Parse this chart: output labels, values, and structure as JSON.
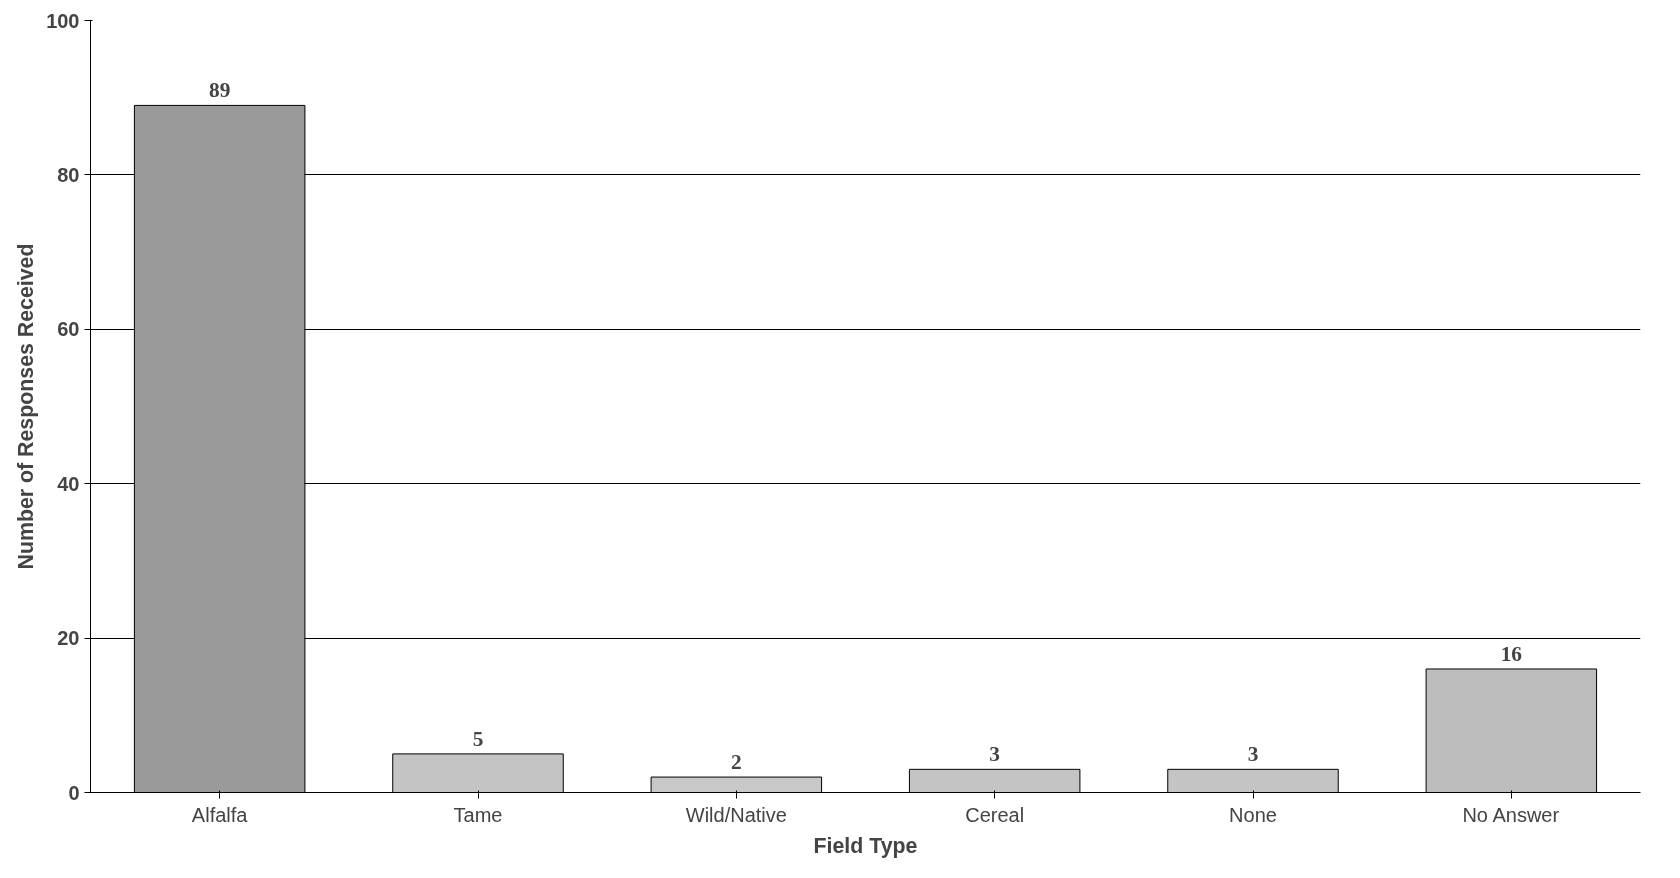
{
  "chart_data": {
    "type": "bar",
    "xlabel": "Field Type",
    "ylabel": "Number of Responses Received",
    "categories": [
      "Alfalfa",
      "Tame",
      "Wild/Native",
      "Cereal",
      "None",
      "No Answer"
    ],
    "values": [
      89,
      5,
      2,
      3,
      3,
      16
    ],
    "colors": [
      "#9a9a9a",
      "#c4c4c4",
      "#c8c8c8",
      "#c4c4c4",
      "#c4c4c4",
      "#bdbdbd"
    ],
    "ylim": [
      0,
      100
    ],
    "yticks": [
      0,
      20,
      40,
      60,
      80,
      100
    ],
    "grid": "y",
    "data_labels": true
  }
}
